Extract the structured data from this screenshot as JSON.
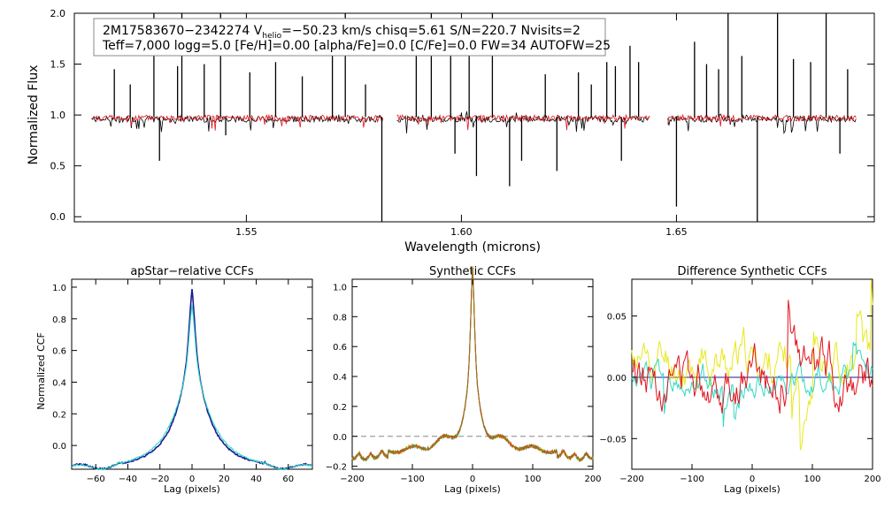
{
  "chart_data": [
    {
      "type": "line",
      "xlabel": "Wavelength (microns)",
      "ylabel": "Normalized Flux",
      "xlim": [
        1.51,
        1.696
      ],
      "ylim": [
        -0.05,
        2.0
      ],
      "xticks": [
        1.55,
        1.6,
        1.65
      ],
      "xtick_labels": [
        "1.55",
        "1.60",
        "1.65"
      ],
      "yticks": [
        0.0,
        0.5,
        1.0,
        1.5,
        2.0
      ],
      "ytick_labels": [
        "0.0",
        "0.5",
        "1.0",
        "1.5",
        "2.0"
      ],
      "annotation": {
        "line1_prefix": "2M17583670−2342274  V",
        "line1_sub": "helio",
        "line1_suffix": "=−50.23 km/s  chisq=5.61  S/N=220.7  Nvisits=2",
        "line2": "Teff=7,000 logg=5.0 [Fe/H]=0.00 [alpha/Fe]=0.0 [C/Fe]=0.0 FW=34 AUTOFW=25"
      },
      "chips": [
        [
          1.514,
          1.582
        ],
        [
          1.585,
          1.644
        ],
        [
          1.648,
          1.692
        ]
      ],
      "series": [
        {
          "color": "#000000",
          "level": 0.96
        },
        {
          "color": "#e0141e",
          "level": 0.97
        }
      ],
      "features": [
        {
          "x": 1.5193,
          "y": 1.45
        },
        {
          "x": 1.523,
          "y": 1.3
        },
        {
          "x": 1.5285,
          "y": 2.0
        },
        {
          "x": 1.5298,
          "y": 0.55
        },
        {
          "x": 1.534,
          "y": 1.48
        },
        {
          "x": 1.535,
          "y": 2.0
        },
        {
          "x": 1.5402,
          "y": 1.5
        },
        {
          "x": 1.544,
          "y": 2.0
        },
        {
          "x": 1.5452,
          "y": 0.8
        },
        {
          "x": 1.5508,
          "y": 1.42
        },
        {
          "x": 1.5568,
          "y": 1.52
        },
        {
          "x": 1.563,
          "y": 1.38
        },
        {
          "x": 1.57,
          "y": 1.72
        },
        {
          "x": 1.573,
          "y": 2.0
        },
        {
          "x": 1.5777,
          "y": 1.3
        },
        {
          "x": 1.5815,
          "y": -0.05
        },
        {
          "x": 1.5895,
          "y": 1.62
        },
        {
          "x": 1.593,
          "y": 2.0
        },
        {
          "x": 1.5975,
          "y": 1.62
        },
        {
          "x": 1.5985,
          "y": 0.62
        },
        {
          "x": 1.6018,
          "y": 1.58
        },
        {
          "x": 1.6035,
          "y": 0.4
        },
        {
          "x": 1.6072,
          "y": 2.0
        },
        {
          "x": 1.6112,
          "y": 0.3
        },
        {
          "x": 1.614,
          "y": 0.55
        },
        {
          "x": 1.6195,
          "y": 1.4
        },
        {
          "x": 1.6222,
          "y": 0.45
        },
        {
          "x": 1.6272,
          "y": 1.42
        },
        {
          "x": 1.6302,
          "y": 1.3
        },
        {
          "x": 1.6338,
          "y": 1.52
        },
        {
          "x": 1.6358,
          "y": 1.48
        },
        {
          "x": 1.6372,
          "y": 0.55
        },
        {
          "x": 1.6392,
          "y": 1.68
        },
        {
          "x": 1.6412,
          "y": 1.52
        },
        {
          "x": 1.65,
          "y": 0.1
        },
        {
          "x": 1.6542,
          "y": 1.72
        },
        {
          "x": 1.657,
          "y": 1.5
        },
        {
          "x": 1.6598,
          "y": 1.45
        },
        {
          "x": 1.662,
          "y": 2.0
        },
        {
          "x": 1.6652,
          "y": 1.58
        },
        {
          "x": 1.6688,
          "y": -0.05
        },
        {
          "x": 1.6735,
          "y": 2.0
        },
        {
          "x": 1.6772,
          "y": 1.55
        },
        {
          "x": 1.6812,
          "y": 1.52
        },
        {
          "x": 1.6848,
          "y": 2.0
        },
        {
          "x": 1.688,
          "y": 0.62
        },
        {
          "x": 1.6898,
          "y": 1.45
        }
      ]
    },
    {
      "type": "line",
      "title": "apStar−relative CCFs",
      "xlabel": "Lag (pixels)",
      "ylabel": "Normalized CCF",
      "xlim": [
        -75,
        75
      ],
      "ylim": [
        -0.15,
        1.05
      ],
      "xticks": [
        -60,
        -40,
        -20,
        0,
        20,
        40,
        60
      ],
      "xtick_labels": [
        "−60",
        "−40",
        "−20",
        "0",
        "20",
        "40",
        "60"
      ],
      "yticks": [
        0.0,
        0.2,
        0.4,
        0.6,
        0.8,
        1.0
      ],
      "ytick_labels": [
        "0.0",
        "0.2",
        "0.4",
        "0.6",
        "0.8",
        "1.0"
      ],
      "series": [
        {
          "color": "#1a1a96",
          "peak": 1.0,
          "width": 9,
          "wing": 0.15,
          "sw": 1.6
        },
        {
          "color": "#34d8c4",
          "peak": 0.92,
          "width": 11,
          "wing": 0.13,
          "sw": 1.1
        }
      ]
    },
    {
      "type": "line",
      "title": "Synthetic CCFs",
      "xlabel": "Lag (pixels)",
      "xlim": [
        -200,
        200
      ],
      "ylim": [
        -0.22,
        1.05
      ],
      "xticks": [
        -200,
        -100,
        0,
        100,
        200
      ],
      "xtick_labels": [
        "−200",
        "−100",
        "0",
        "100",
        "200"
      ],
      "yticks": [
        -0.2,
        0.0,
        0.2,
        0.4,
        0.6,
        0.8,
        1.0
      ],
      "ytick_labels": [
        "−0.2",
        "0.0",
        "0.2",
        "0.4",
        "0.6",
        "0.8",
        "1.0"
      ],
      "reference_line": 0.0,
      "series": [
        {
          "color": "#1a1a96",
          "seed": 1
        },
        {
          "color": "#34d8c4",
          "seed": 2
        },
        {
          "color": "#44c438",
          "seed": 3
        },
        {
          "color": "#e8e81e",
          "seed": 4
        },
        {
          "color": "#e03c1e",
          "seed": 5
        },
        {
          "color": "#9a6d1e",
          "seed": 6
        }
      ]
    },
    {
      "type": "line",
      "title": "Difference Synthetic CCFs",
      "xlabel": "Lag (pixels)",
      "xlim": [
        -200,
        200
      ],
      "ylim": [
        -0.075,
        0.08
      ],
      "xticks": [
        -200,
        -100,
        0,
        100,
        200
      ],
      "xtick_labels": [
        "−200",
        "−100",
        "0",
        "100",
        "200"
      ],
      "yticks": [
        -0.05,
        0.0,
        0.05
      ],
      "ytick_labels": [
        "−0.05",
        "0.00",
        "0.05"
      ],
      "reference_line": 0.0,
      "reference_color": "#1a1a96",
      "series": [
        {
          "color": "#e8e81e",
          "seed": 11,
          "amp": 0.028,
          "bias": 0.012
        },
        {
          "color": "#34d8c4",
          "seed": 12,
          "amp": 0.018,
          "bias": -0.004
        },
        {
          "color": "#e0141e",
          "seed": 13,
          "amp": 0.03,
          "bias": 0.002
        }
      ]
    }
  ]
}
